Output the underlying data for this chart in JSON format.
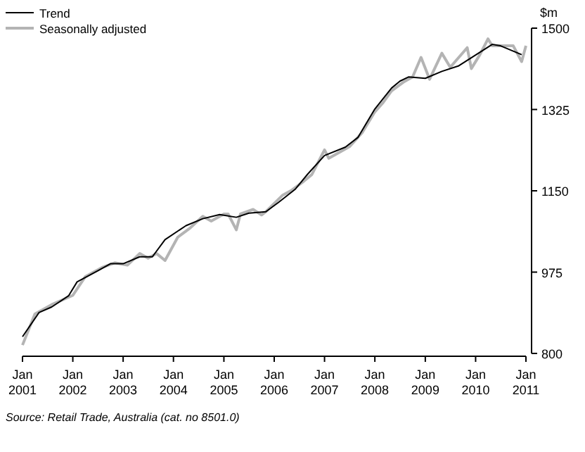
{
  "chart_data": {
    "type": "line",
    "ylabel": "$m",
    "legend": "top left",
    "grid": false,
    "xlim": [
      "2001-01",
      "2011-01"
    ],
    "ylim": [
      800,
      1500
    ],
    "xticks": [
      {
        "value": "2001-01",
        "label": "Jan\n2001"
      },
      {
        "value": "2002-01",
        "label": "Jan\n2002"
      },
      {
        "value": "2003-01",
        "label": "Jan\n2003"
      },
      {
        "value": "2004-01",
        "label": "Jan\n2004"
      },
      {
        "value": "2005-01",
        "label": "Jan\n2005"
      },
      {
        "value": "2006-01",
        "label": "Jan\n2006"
      },
      {
        "value": "2007-01",
        "label": "Jan\n2007"
      },
      {
        "value": "2008-01",
        "label": "Jan\n2008"
      },
      {
        "value": "2009-01",
        "label": "Jan\n2009"
      },
      {
        "value": "2010-01",
        "label": "Jan\n2010"
      },
      {
        "value": "2011-01",
        "label": "Jan\n2011"
      }
    ],
    "yticks": [
      800,
      975,
      1150,
      1325,
      1500
    ],
    "annotations": [
      "Source: Retail Trade, Australia (cat. no 8501.0)"
    ],
    "series": [
      {
        "name": "Trend",
        "color": "#000000",
        "x": [
          "2001-01",
          "2001-05",
          "2001-08",
          "2001-12",
          "2002-02",
          "2002-07",
          "2002-10",
          "2003-01",
          "2003-05",
          "2003-08",
          "2003-11",
          "2004-04",
          "2004-08",
          "2004-12",
          "2005-04",
          "2005-07",
          "2005-11",
          "2006-02",
          "2006-06",
          "2006-09",
          "2007-01",
          "2007-06",
          "2007-09",
          "2008-01",
          "2008-05",
          "2008-07",
          "2008-09",
          "2009-01",
          "2009-05",
          "2009-09",
          "2010-05",
          "2010-07",
          "2010-12"
        ],
        "values": [
          836,
          888,
          900,
          924,
          954,
          978,
          993,
          993,
          1008,
          1008,
          1045,
          1075,
          1090,
          1099,
          1093,
          1102,
          1105,
          1125,
          1153,
          1186,
          1226,
          1244,
          1265,
          1326,
          1371,
          1386,
          1395,
          1392,
          1407,
          1419,
          1465,
          1462,
          1443
        ]
      },
      {
        "name": "Seasonally adjusted",
        "color": "#b4b4b4",
        "x": [
          "2001-01",
          "2001-04",
          "2001-08",
          "2002-01",
          "2002-04",
          "2002-08",
          "2002-11",
          "2003-02",
          "2003-05",
          "2003-07",
          "2003-09",
          "2003-11",
          "2004-02",
          "2004-05",
          "2004-08",
          "2004-10",
          "2005-01",
          "2005-02",
          "2005-04",
          "2005-05",
          "2005-08",
          "2005-10",
          "2005-11",
          "2006-03",
          "2006-05",
          "2006-08",
          "2006-10",
          "2007-01",
          "2007-02",
          "2007-05",
          "2007-07",
          "2007-10",
          "2008-01",
          "2008-03",
          "2008-05",
          "2008-08",
          "2008-10",
          "2008-12",
          "2009-02",
          "2009-05",
          "2009-07",
          "2009-11",
          "2009-12",
          "2010-02",
          "2010-04",
          "2010-05",
          "2010-10",
          "2010-12",
          "2011-01"
        ],
        "values": [
          818,
          885,
          905,
          925,
          965,
          985,
          995,
          990,
          1015,
          1005,
          1015,
          1000,
          1050,
          1070,
          1095,
          1085,
          1100,
          1100,
          1066,
          1100,
          1110,
          1098,
          1105,
          1140,
          1150,
          1170,
          1185,
          1238,
          1220,
          1235,
          1245,
          1275,
          1320,
          1340,
          1365,
          1385,
          1395,
          1437,
          1390,
          1446,
          1416,
          1458,
          1413,
          1443,
          1477,
          1462,
          1462,
          1428,
          1462
        ]
      }
    ]
  }
}
